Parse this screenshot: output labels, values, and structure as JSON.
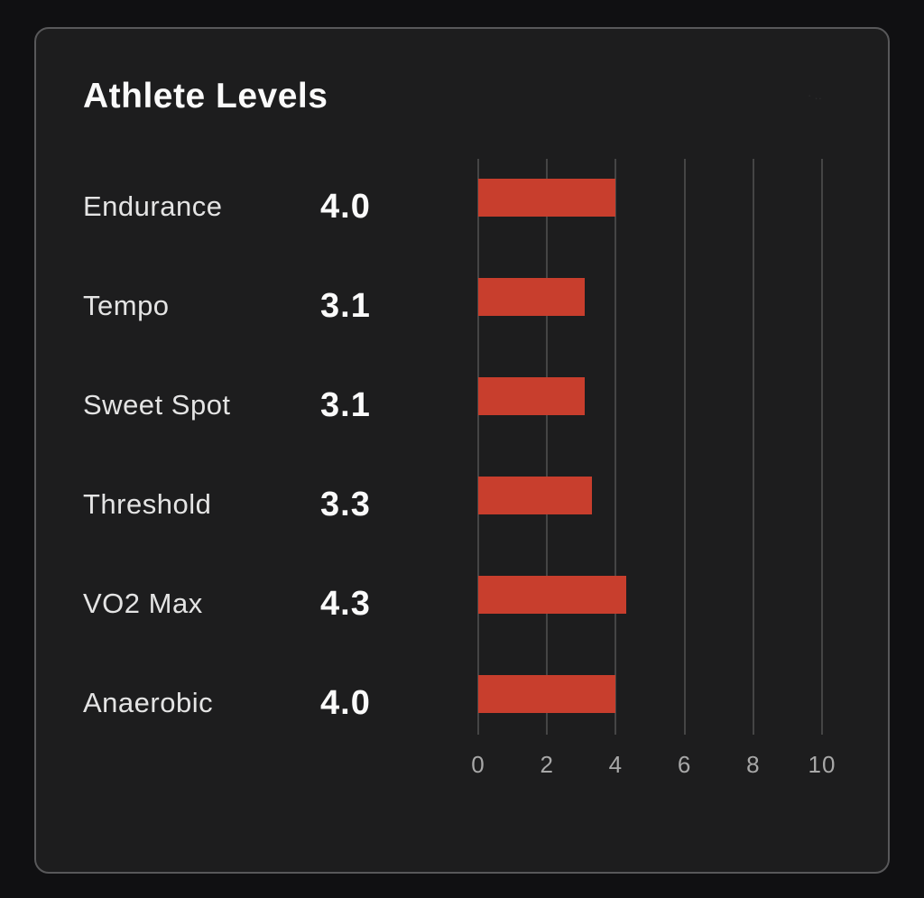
{
  "card": {
    "title": "Athlete Levels"
  },
  "colors": {
    "page_bg": "#101012",
    "card_bg": "#1d1d1e",
    "card_border": "#58585a",
    "bar": "#c83e2d",
    "gridline": "#454545",
    "tick_text": "#a8a8a8",
    "label_text": "#e4e4e4",
    "value_text": "#fafafa",
    "title_text": "#fafafa"
  },
  "chart_data": {
    "type": "bar",
    "orientation": "horizontal",
    "title": "Athlete Levels",
    "categories": [
      "Endurance",
      "Tempo",
      "Sweet Spot",
      "Threshold",
      "VO2 Max",
      "Anaerobic"
    ],
    "values": [
      4.0,
      3.1,
      3.1,
      3.3,
      4.3,
      4.0
    ],
    "value_labels": [
      "4.0",
      "3.1",
      "3.1",
      "3.3",
      "4.3",
      "4.0"
    ],
    "xlim": [
      0,
      10
    ],
    "xticks": [
      0,
      2,
      4,
      6,
      8,
      10
    ],
    "xtick_labels": [
      "0",
      "2",
      "4",
      "6",
      "8",
      "10"
    ],
    "grid": "vertical",
    "legend": "none",
    "bar_color": "#c83e2d"
  }
}
